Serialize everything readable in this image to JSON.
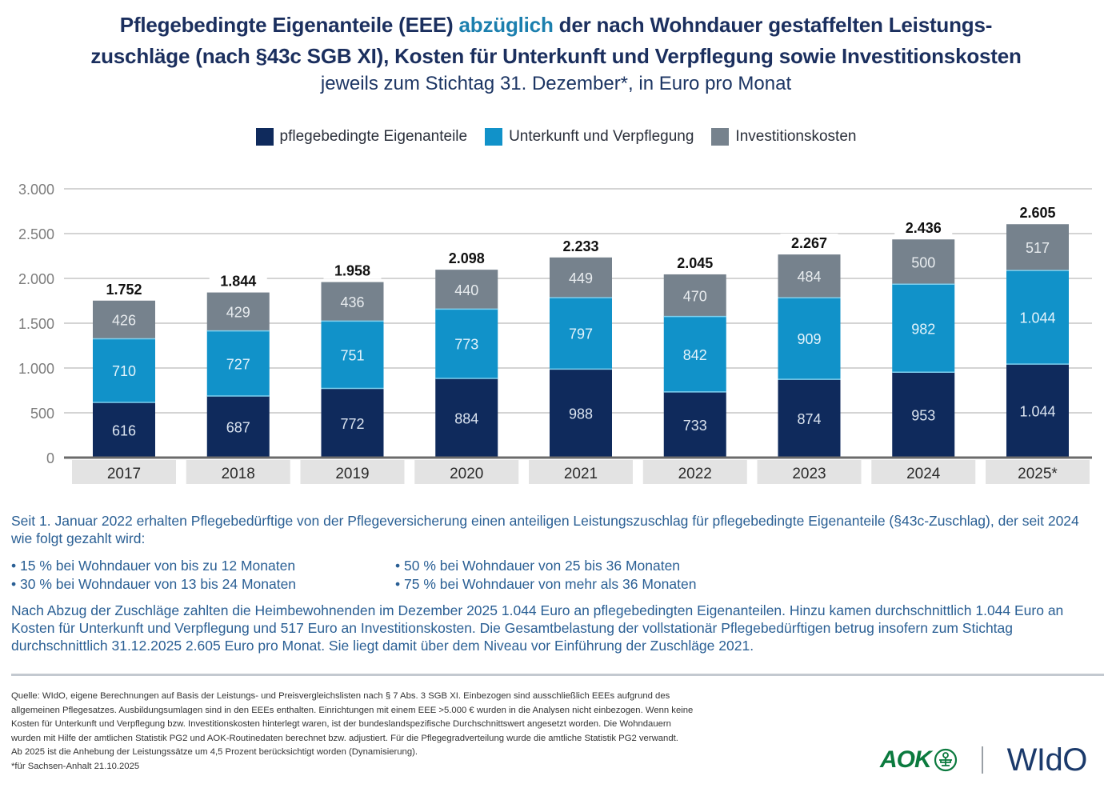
{
  "header": {
    "title_part1": "Pflegebedingte Eigenanteile (EEE) ",
    "title_accent": "abzüglich",
    "title_part2": " der nach Wohndauer gestaffelten Leistungs-",
    "title_line2": "zuschläge (nach §43c SGB XI), Kosten für Unterkunft und Verpflegung sowie Investitionskosten",
    "subtitle": "jeweils zum Stichtag 31. Dezember*, in Euro pro Monat"
  },
  "colors": {
    "pflege": "#0f2a5c",
    "unterkunft": "#1192c9",
    "invest": "#76828d",
    "title": "#1b2f5e",
    "accent": "#1b7fae",
    "body_text": "#2a5f94",
    "aok_green": "#0b7a3e"
  },
  "chart_data": {
    "type": "bar",
    "stacked": true,
    "title": "Pflegebedingte Eigenanteile (EEE) abzüglich der nach Wohndauer gestaffelten Leistungszuschläge (nach §43c SGB XI), Kosten für Unterkunft und Verpflegung sowie Investitionskosten",
    "subtitle": "jeweils zum Stichtag 31. Dezember*, in Euro pro Monat",
    "xlabel": "",
    "ylabel": "",
    "categories": [
      "2017",
      "2018",
      "2019",
      "2020",
      "2021",
      "2022",
      "2023",
      "2024",
      "2025*"
    ],
    "series": [
      {
        "name": "pflegebedingte Eigenanteile",
        "color_key": "pflege",
        "label_color": "#dbe4f0",
        "values": [
          616,
          687,
          772,
          884,
          988,
          733,
          874,
          953,
          1044
        ],
        "labels": [
          "616",
          "687",
          "772",
          "884",
          "988",
          "733",
          "874",
          "953",
          "1.044"
        ]
      },
      {
        "name": "Unterkunft und Verpflegung",
        "color_key": "unterkunft",
        "label_color": "#e3f3fb",
        "values": [
          710,
          727,
          751,
          773,
          797,
          842,
          909,
          982,
          1044
        ],
        "labels": [
          "710",
          "727",
          "751",
          "773",
          "797",
          "842",
          "909",
          "982",
          "1.044"
        ]
      },
      {
        "name": "Investitionskosten",
        "color_key": "invest",
        "label_color": "#e8ecef",
        "values": [
          426,
          429,
          436,
          440,
          449,
          470,
          484,
          500,
          517
        ],
        "labels": [
          "426",
          "429",
          "436",
          "440",
          "449",
          "470",
          "484",
          "500",
          "517"
        ]
      }
    ],
    "totals": [
      1752,
      1844,
      1958,
      2098,
      2233,
      2045,
      2267,
      2436,
      2605
    ],
    "total_labels": [
      "1.752",
      "1.844",
      "1.958",
      "2.098",
      "2.233",
      "2.045",
      "2.267",
      "2.436",
      "2.605"
    ],
    "ylim": [
      0,
      3000
    ],
    "yticks": [
      0,
      500,
      1000,
      1500,
      2000,
      2500,
      3000
    ],
    "ytick_labels": [
      "0",
      "500",
      "1.000",
      "1.500",
      "2.000",
      "2.500",
      "3.000"
    ],
    "grid": true,
    "legend_position": "top-center"
  },
  "legend": [
    {
      "label": "pflegebedingte Eigenanteile",
      "color": "#0f2a5c"
    },
    {
      "label": "Unterkunft und Verpflegung",
      "color": "#1192c9"
    },
    {
      "label": "Investitionskosten",
      "color": "#76828d"
    }
  ],
  "body": {
    "intro": "Seit 1. Januar 2022 erhalten Pflegebedürftige von der Pflegeversicherung einen anteiligen Leistungszuschlag für pflegebedingte Eigenanteile (§43c-Zuschlag), der seit 2024 wie folgt gezahlt wird:",
    "bullets": [
      "• 15 % bei Wohndauer von bis zu 12 Monaten",
      "• 50 % bei Wohndauer von 25 bis 36 Monaten",
      "• 30 % bei Wohndauer von 13 bis 24 Monaten",
      "• 75 % bei Wohndauer von mehr als 36 Monaten"
    ],
    "summary": "Nach Abzug der Zuschläge zahlten die Heimbewohnenden im Dezember 2025 1.044 Euro an pflegebedingten Eigenanteilen. Hinzu kamen durchschnittlich 1.044 Euro an Kosten für Unterkunft und Verpflegung und 517 Euro an Investitionskosten. Die Gesamtbelastung der vollstationär Pflegebedürftigen betrug insofern zum Stichtag durchschnittlich 31.12.2025 2.605 Euro pro Monat. Sie liegt damit über dem Niveau vor Einführung der Zuschläge 2021."
  },
  "footer": {
    "source_lines": [
      "Quelle: WIdO, eigene Berechnungen auf Basis der Leistungs- und Preisvergleichslisten nach § 7 Abs. 3 SGB XI. Einbezogen sind ausschließlich EEEs aufgrund des",
      "allgemeinen Pflegesatzes. Ausbildungsumlagen sind in den EEEs enthalten. Einrichtungen mit einem EEE >5.000 € wurden in die Analysen nicht einbezogen. Wenn keine",
      "Kosten für Unterkunft und Verpflegung bzw. Investitionskosten hinterlegt waren, ist der bundeslandspezifische Durchschnittswert angesetzt worden. Die Wohndauern",
      "wurden mit Hilfe der amtlichen Statistik PG2 und AOK-Routinedaten berechnet bzw. adjustiert. Für die Pflegegradverteilung wurde die amtliche Statistik PG2 verwandt.",
      "Ab 2025 ist die Anhebung der Leistungssätze um 4,5 Prozent berücksichtigt worden (Dynamisierung).",
      "*für Sachsen-Anhalt 21.10.2025"
    ],
    "logo_aok": "AOK",
    "logo_wido": "WIdO"
  }
}
